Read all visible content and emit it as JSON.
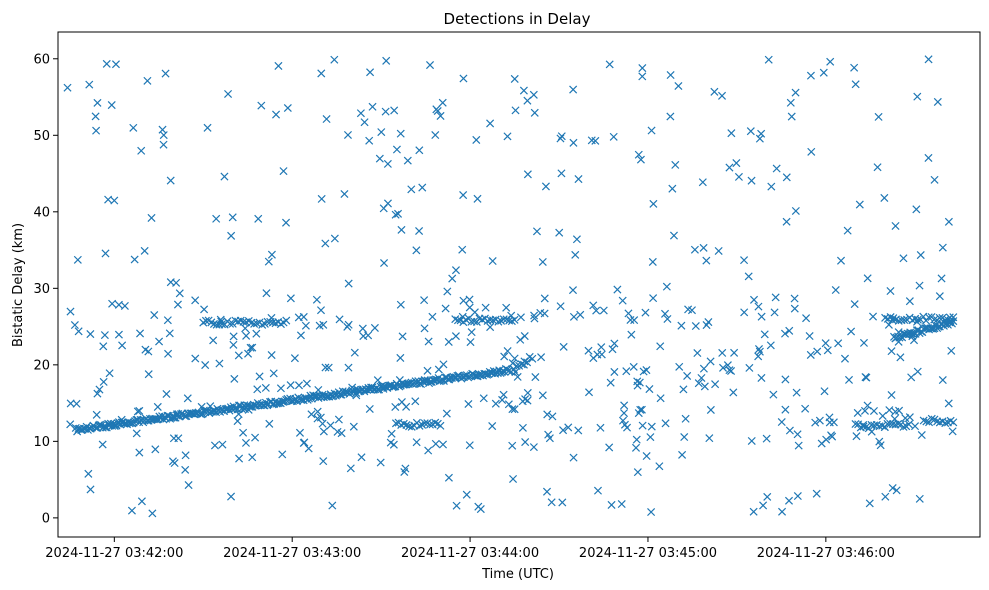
{
  "chart_data": {
    "type": "scatter",
    "title": "Detections in Delay",
    "xlabel": "Time (UTC)",
    "ylabel": "Bistatic Delay (km)",
    "x_ticks": [
      "2024-11-27 03:42:00",
      "2024-11-27 03:43:00",
      "2024-11-27 03:44:00",
      "2024-11-27 03:45:00",
      "2024-11-27 03:46:00"
    ],
    "x_start": "2024-11-27 03:41:44",
    "x_end": "2024-11-27 03:46:43",
    "xlim": [
      "2024-11-27 03:41:41",
      "2024-11-27 03:46:52"
    ],
    "y_ticks": [
      0,
      10,
      20,
      30,
      40,
      50,
      60
    ],
    "ylim": [
      -2.5,
      63.5
    ],
    "marker": "x",
    "color": "#1f77b4",
    "tracks": [
      {
        "start": "2024-11-27 03:41:47",
        "end": "2024-11-27 03:44:13",
        "y_start": 11.5,
        "y_end": 19.3
      },
      {
        "start": "2024-11-27 03:46:23",
        "end": "2024-11-27 03:46:43",
        "y_start": 23.5,
        "y_end": 25.5
      }
    ],
    "clusters": [
      {
        "start": "2024-11-27 03:44:13",
        "end": "2024-11-27 03:44:21",
        "y_start": 19.0,
        "y_end": 21.0
      },
      {
        "start": "2024-11-27 03:42:30",
        "end": "2024-11-27 03:42:58",
        "y_start": 25.5,
        "y_end": 25.5
      },
      {
        "start": "2024-11-27 03:43:35",
        "end": "2024-11-27 03:43:50",
        "y_start": 12.2,
        "y_end": 12.2
      },
      {
        "start": "2024-11-27 03:43:55",
        "end": "2024-11-27 03:44:15",
        "y_start": 25.8,
        "y_end": 25.8
      },
      {
        "start": "2024-11-27 03:46:10",
        "end": "2024-11-27 03:46:28",
        "y_start": 12.0,
        "y_end": 12.0
      },
      {
        "start": "2024-11-27 03:46:33",
        "end": "2024-11-27 03:46:43",
        "y_start": 12.8,
        "y_end": 12.5
      },
      {
        "start": "2024-11-27 03:46:20",
        "end": "2024-11-27 03:46:43",
        "y_start": 26.0,
        "y_end": 26.0
      }
    ],
    "noise_range": [
      0.5,
      60.0
    ]
  }
}
